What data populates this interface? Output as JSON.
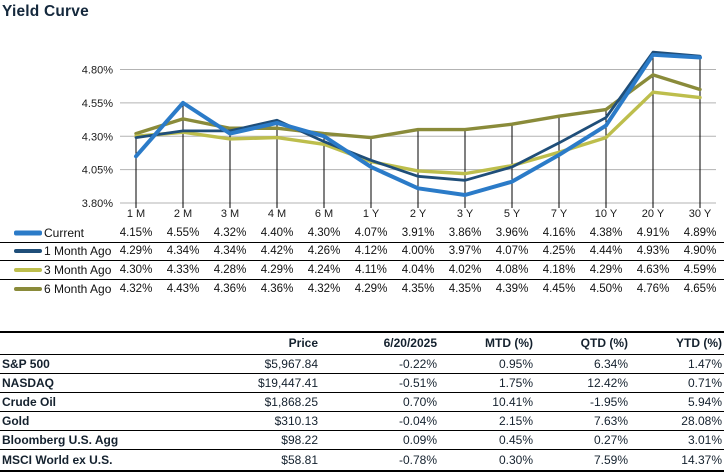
{
  "title": "Yield Curve",
  "colors": {
    "title_navy": "#14283C",
    "grid": "#B3B3B3",
    "drop_line": "#000000",
    "axis_text": "#1A1A1A",
    "series_current": "#2B7BC8",
    "series_1mo": "#1F4E79",
    "series_3mo": "#BDBE4C",
    "series_6mo": "#8A8B3A"
  },
  "chart_data": {
    "type": "line",
    "title": "Yield Curve",
    "xlabel": "",
    "ylabel": "",
    "ylim": [
      3.8,
      4.8
    ],
    "y_ticks": [
      4.8,
      4.55,
      4.3,
      4.05,
      3.8
    ],
    "grid": true,
    "drop_lines": true,
    "legend_position": "left-table-below",
    "categories": [
      "1 M",
      "2 M",
      "3 M",
      "4 M",
      "6 M",
      "1 Y",
      "2 Y",
      "3 Y",
      "5 Y",
      "7 Y",
      "10 Y",
      "20 Y",
      "30 Y"
    ],
    "series": [
      {
        "name": "Current",
        "color": "#2B7BC8",
        "width": 4.0,
        "values": [
          4.15,
          4.55,
          4.32,
          4.4,
          4.3,
          4.07,
          3.91,
          3.86,
          3.96,
          4.16,
          4.38,
          4.91,
          4.89
        ]
      },
      {
        "name": "1 Month Ago",
        "color": "#1F4E79",
        "width": 2.8,
        "values": [
          4.29,
          4.34,
          4.34,
          4.42,
          4.26,
          4.12,
          4.0,
          3.97,
          4.07,
          4.25,
          4.44,
          4.93,
          4.9
        ]
      },
      {
        "name": "3 Month Ago",
        "color": "#BDBE4C",
        "width": 3.4,
        "values": [
          4.3,
          4.33,
          4.28,
          4.29,
          4.24,
          4.11,
          4.04,
          4.02,
          4.08,
          4.18,
          4.29,
          4.63,
          4.59
        ]
      },
      {
        "name": "6 Month Ago",
        "color": "#8A8B3A",
        "width": 3.4,
        "values": [
          4.32,
          4.43,
          4.36,
          4.36,
          4.32,
          4.29,
          4.35,
          4.35,
          4.39,
          4.45,
          4.5,
          4.76,
          4.65
        ]
      }
    ]
  },
  "market_table": {
    "headers": [
      "",
      "Price",
      "6/20/2025",
      "MTD (%)",
      "QTD (%)",
      "YTD (%)"
    ],
    "rows": [
      {
        "label": "S&P 500",
        "values": [
          "$5,967.84",
          "-0.22%",
          "0.95%",
          "6.34%",
          "1.47%"
        ]
      },
      {
        "label": "NASDAQ",
        "values": [
          "$19,447.41",
          "-0.51%",
          "1.75%",
          "12.42%",
          "0.71%"
        ]
      },
      {
        "label": "Crude Oil",
        "values": [
          "$1,868.25",
          "0.70%",
          "10.41%",
          "-1.95%",
          "5.94%"
        ]
      },
      {
        "label": "Gold",
        "values": [
          "$310.13",
          "-0.04%",
          "2.15%",
          "7.63%",
          "28.08%"
        ]
      },
      {
        "label": "Bloomberg U.S. Agg",
        "values": [
          "$98.22",
          "0.09%",
          "0.45%",
          "0.27%",
          "3.01%"
        ]
      },
      {
        "label": "MSCI World ex U.S.",
        "values": [
          "$58.81",
          "-0.78%",
          "0.30%",
          "7.59%",
          "14.37%"
        ]
      }
    ]
  }
}
